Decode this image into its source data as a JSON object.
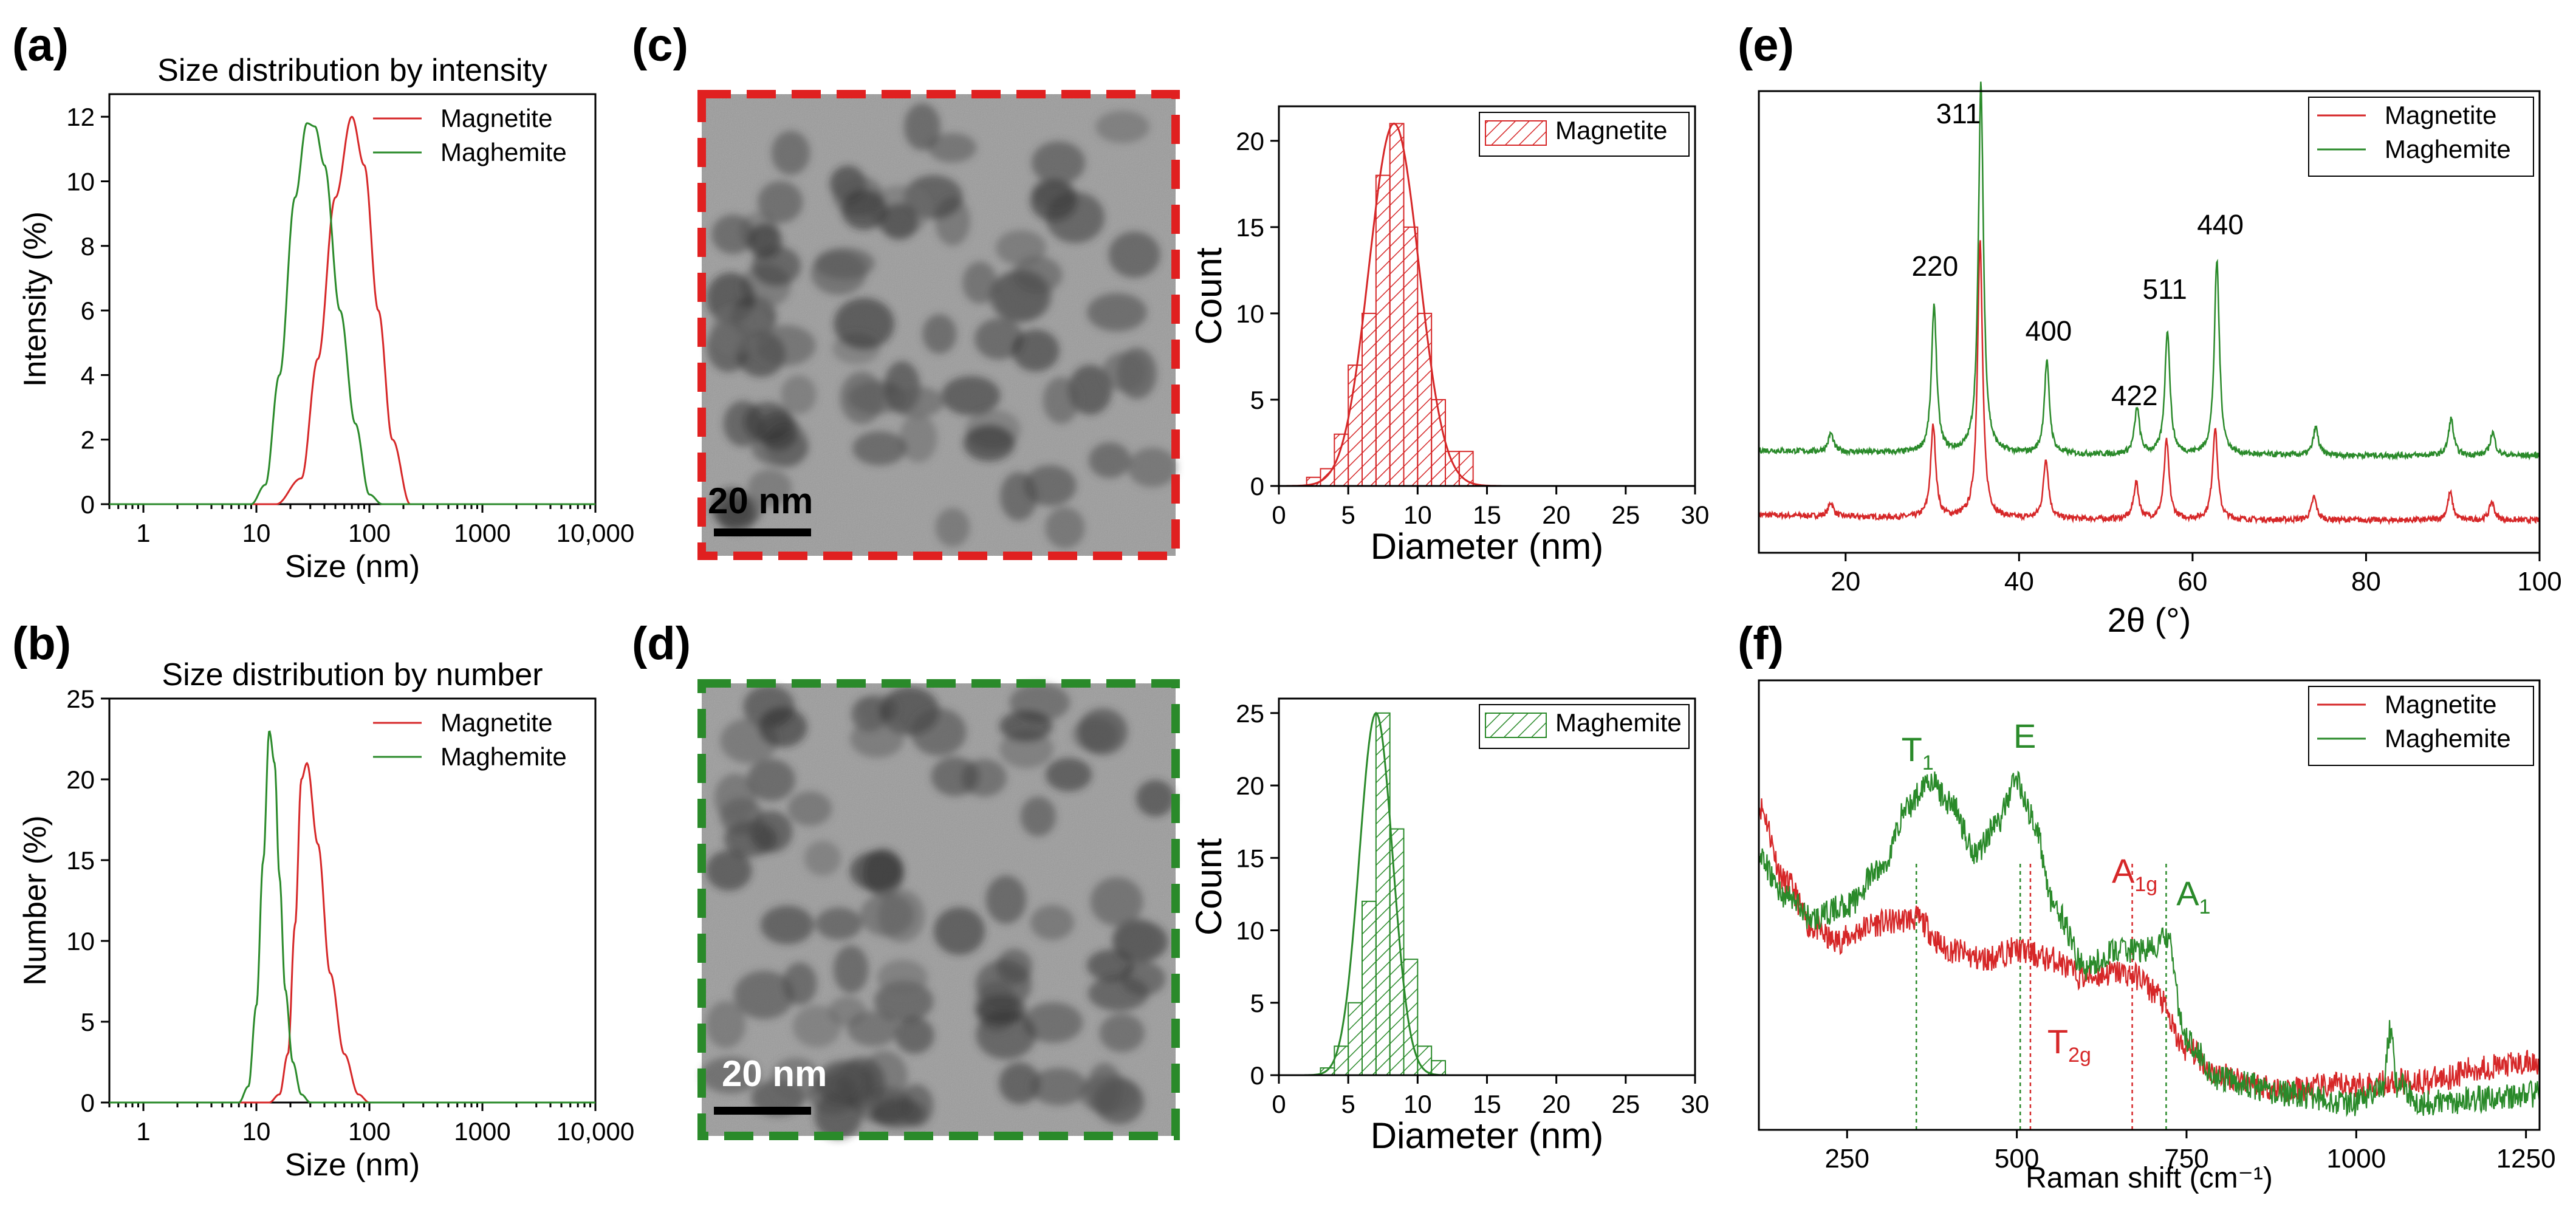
{
  "colors": {
    "magnetite": "#d62728",
    "maghemite": "#2a8a2a",
    "axis": "#000000"
  },
  "panel_labels": [
    "(a)",
    "(b)",
    "(c)",
    "(d)",
    "(e)",
    "(f)"
  ],
  "chart_data": [
    {
      "id": "a",
      "type": "line",
      "title": "Size distribution by intensity",
      "xlabel": "Size (nm)",
      "ylabel": "Intensity (%)",
      "xscale": "log",
      "xlim": [
        0.5,
        10000
      ],
      "ylim": [
        0,
        12.7
      ],
      "xticks": [
        1,
        10,
        100,
        1000,
        10000
      ],
      "xtick_labels": [
        "1",
        "10",
        "100",
        "1000",
        "10,000"
      ],
      "yticks": [
        0,
        2,
        4,
        6,
        8,
        10,
        12
      ],
      "ytick_labels": [
        "0",
        "2",
        "4",
        "6",
        "8",
        "10",
        "12"
      ],
      "legend": "top-right",
      "series": [
        {
          "name": "Magnetite",
          "color": "#d62728",
          "x": [
            0.5,
            15,
            25,
            35,
            50,
            70,
            90,
            120,
            160,
            230,
            300,
            10000
          ],
          "y": [
            0,
            0,
            0.8,
            4.5,
            9.5,
            12,
            10.5,
            6.0,
            2.0,
            0,
            0,
            0
          ]
        },
        {
          "name": "Maghemite",
          "color": "#2a8a2a",
          "x": [
            0.5,
            9,
            12,
            16,
            22,
            28,
            33,
            40,
            55,
            75,
            100,
            130,
            10000
          ],
          "y": [
            0,
            0,
            0.6,
            4.0,
            9.5,
            11.8,
            11.7,
            10.5,
            6.0,
            2.5,
            0.3,
            0,
            0
          ]
        }
      ]
    },
    {
      "id": "b",
      "type": "line",
      "title": "Size distribution by number",
      "xlabel": "Size (nm)",
      "ylabel": "Number (%)",
      "xscale": "log",
      "xlim": [
        0.5,
        10000
      ],
      "ylim": [
        0,
        25
      ],
      "xticks": [
        1,
        10,
        100,
        1000,
        10000
      ],
      "xtick_labels": [
        "1",
        "10",
        "100",
        "1000",
        "10,000"
      ],
      "yticks": [
        0,
        5,
        10,
        15,
        20,
        25
      ],
      "ytick_labels": [
        "0",
        "5",
        "10",
        "15",
        "20",
        "25"
      ],
      "legend": "top-right",
      "series": [
        {
          "name": "Magnetite",
          "color": "#d62728",
          "x": [
            0.5,
            13,
            16,
            19,
            22,
            25,
            28,
            35,
            45,
            60,
            80,
            100,
            10000
          ],
          "y": [
            0,
            0,
            0.5,
            3,
            11,
            20,
            21,
            16,
            8,
            3,
            0.5,
            0,
            0
          ]
        },
        {
          "name": "Maghemite",
          "color": "#2a8a2a",
          "x": [
            0.5,
            7,
            8.5,
            10,
            11.5,
            13,
            14.5,
            16,
            18,
            21,
            25,
            30,
            10000
          ],
          "y": [
            0,
            0,
            1,
            6,
            15,
            23,
            21,
            14,
            7,
            2.5,
            0.5,
            0,
            0
          ]
        }
      ]
    },
    {
      "id": "c-hist",
      "type": "bar",
      "title": "",
      "xlabel": "Diameter (nm)",
      "ylabel": "Count",
      "xlim": [
        0,
        30
      ],
      "ylim": [
        0,
        22
      ],
      "bin_width": 1,
      "xticks": [
        0,
        5,
        10,
        15,
        20,
        25,
        30
      ],
      "xtick_labels": [
        "0",
        "5",
        "10",
        "15",
        "20",
        "25",
        "30"
      ],
      "yticks": [
        0,
        5,
        10,
        15,
        20
      ],
      "ytick_labels": [
        "0",
        "5",
        "10",
        "15",
        "20"
      ],
      "legend": "top-right",
      "legend_label": "Magnetite",
      "color": "#d62728",
      "bins": [
        2,
        3,
        4,
        5,
        6,
        7,
        8,
        9,
        10,
        11,
        12,
        13
      ],
      "values": [
        0.5,
        1,
        3,
        7,
        10,
        18,
        21,
        15,
        10,
        5,
        2,
        2
      ],
      "fit": {
        "mean": 8.3,
        "sd": 1.8,
        "amp": 21
      }
    },
    {
      "id": "d-hist",
      "type": "bar",
      "title": "",
      "xlabel": "Diameter (nm)",
      "ylabel": "Count",
      "xlim": [
        0,
        30
      ],
      "ylim": [
        0,
        26
      ],
      "bin_width": 1,
      "xticks": [
        0,
        5,
        10,
        15,
        20,
        25,
        30
      ],
      "xtick_labels": [
        "0",
        "5",
        "10",
        "15",
        "20",
        "25",
        "30"
      ],
      "yticks": [
        0,
        5,
        10,
        15,
        20,
        25
      ],
      "ytick_labels": [
        "0",
        "5",
        "10",
        "15",
        "20",
        "25"
      ],
      "legend": "top-right",
      "legend_label": "Maghemite",
      "color": "#2a8a2a",
      "bins": [
        3,
        4,
        5,
        6,
        7,
        8,
        9,
        10,
        11
      ],
      "values": [
        0.5,
        2,
        5,
        12,
        25,
        17,
        8,
        2,
        1
      ],
      "fit": {
        "mean": 7.0,
        "sd": 1.2,
        "amp": 25
      }
    },
    {
      "id": "e",
      "type": "line",
      "title": "",
      "xlabel": "2θ (°)",
      "ylabel": "",
      "xlim": [
        10,
        100
      ],
      "ylim": [
        0,
        1
      ],
      "xticks": [
        20,
        40,
        60,
        80,
        100
      ],
      "xtick_labels": [
        "20",
        "40",
        "60",
        "80",
        "100"
      ],
      "legend": "top-right",
      "series": [
        {
          "name": "Magnetite",
          "color": "#d62728",
          "offset": 0.07,
          "peaks": [
            [
              18.3,
              0.03
            ],
            [
              30.1,
              0.2
            ],
            [
              35.5,
              0.6
            ],
            [
              43.1,
              0.13
            ],
            [
              53.5,
              0.08
            ],
            [
              57.0,
              0.17
            ],
            [
              62.6,
              0.2
            ],
            [
              74.0,
              0.05
            ],
            [
              89.7,
              0.06
            ],
            [
              94.5,
              0.04
            ]
          ]
        },
        {
          "name": "Maghemite",
          "color": "#2a8a2a",
          "offset": 0.21,
          "peaks": [
            [
              18.3,
              0.04
            ],
            [
              30.2,
              0.32
            ],
            [
              35.6,
              0.8
            ],
            [
              43.2,
              0.2
            ],
            [
              53.6,
              0.1
            ],
            [
              57.1,
              0.27
            ],
            [
              62.8,
              0.42
            ],
            [
              74.2,
              0.06
            ],
            [
              89.8,
              0.08
            ],
            [
              94.6,
              0.05
            ]
          ]
        }
      ],
      "annotations": [
        {
          "text": "311",
          "x": 33,
          "y": 0.93
        },
        {
          "text": "220",
          "x": 30.3,
          "y": 0.6
        },
        {
          "text": "400",
          "x": 43.4,
          "y": 0.46
        },
        {
          "text": "422",
          "x": 53.3,
          "y": 0.32
        },
        {
          "text": "511",
          "x": 56.8,
          "y": 0.55
        },
        {
          "text": "440",
          "x": 63.2,
          "y": 0.69
        }
      ]
    },
    {
      "id": "f",
      "type": "line",
      "title": "",
      "xlabel": "Raman shift (cm⁻¹)",
      "ylabel": "",
      "xlim": [
        120,
        1270
      ],
      "ylim": [
        0,
        1
      ],
      "xticks": [
        250,
        500,
        750,
        1000,
        1250
      ],
      "xtick_labels": [
        "250",
        "500",
        "750",
        "1000",
        "1250"
      ],
      "legend": "top-right",
      "series": [
        {
          "name": "Magnetite",
          "color": "#d62728",
          "x": [
            120,
            160,
            200,
            230,
            300,
            350,
            400,
            450,
            500,
            550,
            600,
            650,
            680,
            700,
            750,
            800,
            900,
            1000,
            1100,
            1200,
            1270
          ],
          "y": [
            0.72,
            0.55,
            0.45,
            0.42,
            0.46,
            0.47,
            0.4,
            0.38,
            0.4,
            0.38,
            0.34,
            0.35,
            0.34,
            0.31,
            0.18,
            0.12,
            0.09,
            0.1,
            0.11,
            0.14,
            0.15
          ]
        },
        {
          "name": "Maghemite",
          "color": "#2a8a2a",
          "x": [
            120,
            160,
            200,
            250,
            300,
            340,
            370,
            400,
            440,
            470,
            500,
            520,
            560,
            600,
            650,
            700,
            720,
            750,
            800,
            900,
            1000,
            1040,
            1050,
            1060,
            1100,
            1200,
            1270
          ],
          "y": [
            0.6,
            0.52,
            0.47,
            0.5,
            0.58,
            0.72,
            0.78,
            0.73,
            0.62,
            0.68,
            0.78,
            0.7,
            0.48,
            0.36,
            0.4,
            0.4,
            0.43,
            0.2,
            0.11,
            0.08,
            0.06,
            0.1,
            0.22,
            0.1,
            0.06,
            0.07,
            0.08
          ]
        }
      ],
      "markers": [
        {
          "x": 352,
          "color": "#2a8a2a"
        },
        {
          "x": 505,
          "color": "#2a8a2a"
        },
        {
          "x": 520,
          "color": "#d62728"
        },
        {
          "x": 670,
          "color": "#d62728"
        },
        {
          "x": 720,
          "color": "#2a8a2a"
        }
      ],
      "annotations": [
        {
          "text": "T",
          "sub": "1",
          "x": 330,
          "y": 0.82,
          "color": "#2a8a2a"
        },
        {
          "text": "E",
          "sub": "",
          "x": 495,
          "y": 0.85,
          "color": "#2a8a2a"
        },
        {
          "text": "A",
          "sub": "1g",
          "x": 640,
          "y": 0.55,
          "color": "#d62728"
        },
        {
          "text": "A",
          "sub": "1",
          "x": 735,
          "y": 0.5,
          "color": "#2a8a2a"
        },
        {
          "text": "T",
          "sub": "2g",
          "x": 545,
          "y": 0.17,
          "color": "#d62728"
        }
      ]
    }
  ],
  "tem": [
    {
      "id": "c",
      "scale_label": "20 nm",
      "frame_color": "#e02020"
    },
    {
      "id": "d",
      "scale_label": "20 nm",
      "frame_color": "#2a8a2a"
    }
  ]
}
